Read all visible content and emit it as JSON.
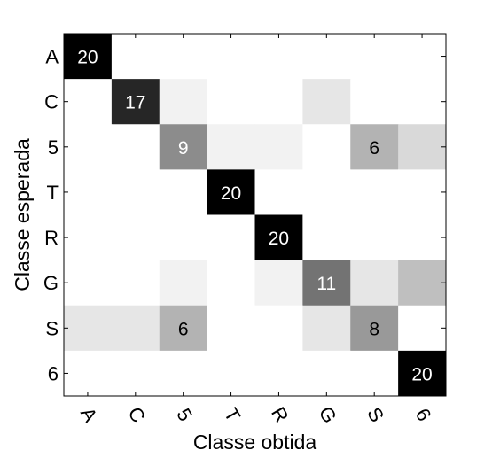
{
  "chart_data": {
    "type": "heatmap",
    "title": "",
    "xlabel": "Classe obtida",
    "ylabel": "Classe esperada",
    "x_categories": [
      "A",
      "C",
      "5",
      "T",
      "R",
      "G",
      "S",
      "6"
    ],
    "y_categories": [
      "A",
      "C",
      "5",
      "T",
      "R",
      "G",
      "S",
      "6"
    ],
    "values": [
      [
        20,
        0,
        0,
        0,
        0,
        0,
        0,
        0
      ],
      [
        0,
        17,
        1,
        0,
        0,
        2,
        0,
        0
      ],
      [
        0,
        0,
        9,
        1,
        1,
        0,
        6,
        3
      ],
      [
        0,
        0,
        0,
        20,
        0,
        0,
        0,
        0
      ],
      [
        0,
        0,
        0,
        0,
        20,
        0,
        0,
        0
      ],
      [
        0,
        0,
        1,
        0,
        1,
        11,
        2,
        5
      ],
      [
        2,
        2,
        6,
        0,
        0,
        2,
        8,
        0
      ],
      [
        0,
        0,
        0,
        0,
        0,
        0,
        0,
        20
      ]
    ],
    "value_range": [
      0,
      20
    ],
    "colormap": "white-to-black",
    "grid": false,
    "labeled_cells": [
      {
        "row": 0,
        "col": 0,
        "text": "20"
      },
      {
        "row": 1,
        "col": 1,
        "text": "17"
      },
      {
        "row": 2,
        "col": 2,
        "text": "9"
      },
      {
        "row": 2,
        "col": 6,
        "text": "6"
      },
      {
        "row": 3,
        "col": 3,
        "text": "20"
      },
      {
        "row": 4,
        "col": 4,
        "text": "20"
      },
      {
        "row": 5,
        "col": 5,
        "text": "11"
      },
      {
        "row": 6,
        "col": 2,
        "text": "6"
      },
      {
        "row": 6,
        "col": 6,
        "text": "8"
      },
      {
        "row": 7,
        "col": 7,
        "text": "20"
      }
    ]
  }
}
